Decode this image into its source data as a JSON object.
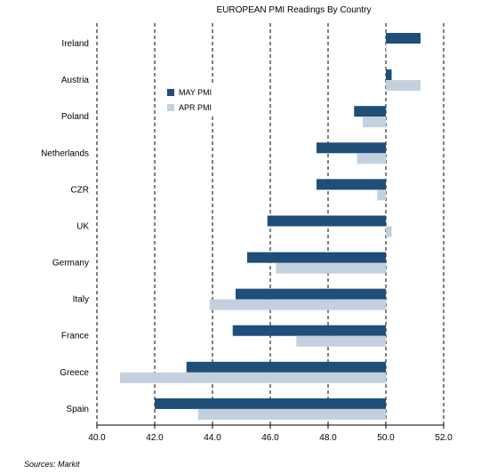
{
  "chart_data": {
    "type": "bar",
    "orientation": "horizontal",
    "title": "EUROPEAN PMI Readings By Country",
    "categories": [
      "Ireland",
      "Austria",
      "Poland",
      "Netherlands",
      "CZR",
      "UK",
      "Germany",
      "Italy",
      "France",
      "Greece",
      "Spain"
    ],
    "series": [
      {
        "name": "MAY PMI",
        "color": "#1f4e79",
        "values": [
          51.2,
          50.2,
          48.9,
          47.6,
          47.6,
          45.9,
          45.2,
          44.8,
          44.7,
          43.1,
          42.0
        ]
      },
      {
        "name": "APR PMI",
        "color": "#c3d1de",
        "values": [
          50.0,
          51.2,
          49.2,
          49.0,
          49.7,
          50.2,
          46.2,
          43.9,
          46.9,
          40.8,
          43.5
        ]
      }
    ],
    "xlim": [
      40,
      52
    ],
    "xticks": [
      "40.0",
      "42.0",
      "44.0",
      "46.0",
      "48.0",
      "50.0",
      "52.0"
    ],
    "base": 50,
    "grid": "vertical-dashed",
    "legend_position": "upper-left"
  },
  "source": "Sources: Markit"
}
